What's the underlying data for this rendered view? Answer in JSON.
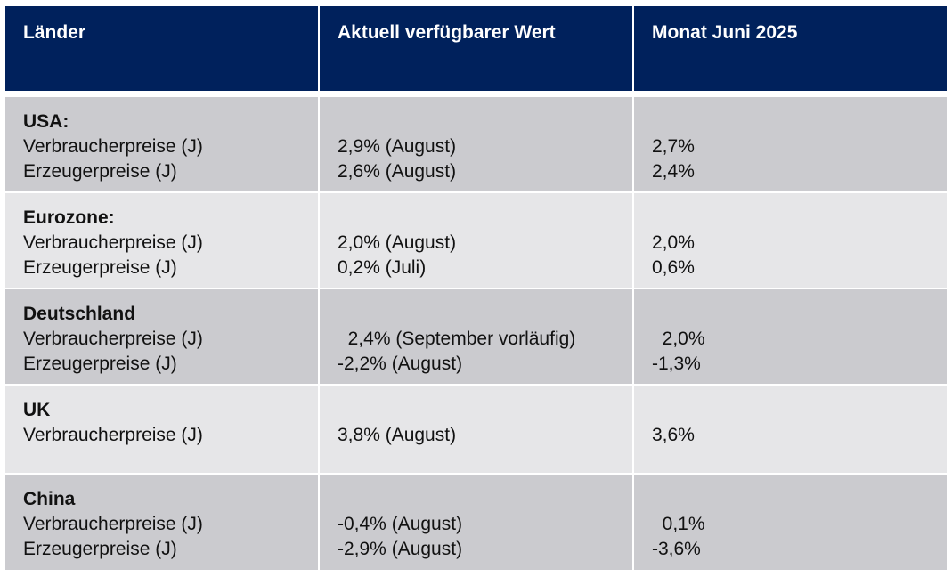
{
  "header": {
    "col1": "Länder",
    "col2": "Aktuell verfügbarer Wert",
    "col3": "Monat Juni 2025"
  },
  "colors": {
    "header_bg": "#00215c",
    "row_dark": "#cbcbcf",
    "row_light": "#e6e6e8"
  },
  "rows": [
    {
      "country": "USA:",
      "indicators": [
        "Verbraucherpreise (J)",
        "Erzeugerpreise (J)"
      ],
      "current": [
        "2,9% (August)",
        "2,6% (August)"
      ],
      "june": [
        "2,7%",
        "2,4%"
      ]
    },
    {
      "country": "Eurozone:",
      "indicators": [
        "Verbraucherpreise (J)",
        "Erzeugerpreise (J)"
      ],
      "current": [
        "2,0% (August)",
        "0,2% (Juli)"
      ],
      "june": [
        "2,0%",
        "0,6%"
      ]
    },
    {
      "country": "Deutschland",
      "indicators": [
        "Verbraucherpreise (J)",
        "Erzeugerpreise (J)"
      ],
      "current": [
        "  2,4% (September vorläufig)",
        "-2,2% (August)"
      ],
      "june": [
        "  2,0%",
        "-1,3%"
      ]
    },
    {
      "country": "UK",
      "indicators": [
        "Verbraucherpreise (J)"
      ],
      "current": [
        "3,8% (August)"
      ],
      "june": [
        "3,6%"
      ]
    },
    {
      "country": "China",
      "indicators": [
        "Verbraucherpreise (J)",
        "Erzeugerpreise (J)"
      ],
      "current": [
        "-0,4% (August)",
        "-2,9% (August)"
      ],
      "june": [
        "  0,1%",
        "-3,6%"
      ]
    }
  ]
}
